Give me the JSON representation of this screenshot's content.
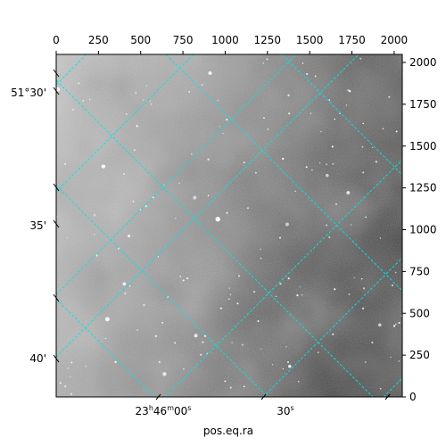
{
  "chart_data": {
    "type": "heatmap",
    "colormap": "gray",
    "image_description": "astronomical sky image with mottled nebulosity and scattered point-like stars; brighter on the left, darker toward the right",
    "xlabel": "pos.eq.ra",
    "ylabel": "",
    "pixel_axes": {
      "xlim": [
        0,
        2048
      ],
      "ylim": [
        0,
        2048
      ],
      "top_ticks": [
        0,
        250,
        500,
        750,
        1000,
        1250,
        1500,
        1750,
        2000
      ],
      "right_ticks": [
        0,
        250,
        500,
        750,
        1000,
        1250,
        1500,
        1750,
        2000
      ]
    },
    "world_ticks": {
      "ra": [
        {
          "h": "23",
          "m": "46",
          "s": "00",
          "label": "23h46m00s"
        },
        {
          "s": "30",
          "label": "30s"
        }
      ],
      "dec": [
        {
          "label": "51°30'"
        },
        {
          "label": "35'"
        },
        {
          "label": "40'"
        }
      ]
    },
    "grid": true,
    "grid_color": "#00e5e5",
    "grid_style": "dashed"
  },
  "colors": {
    "background": "#ffffff",
    "axis": "#000000",
    "grid": "#00e5e5",
    "star": "#ffffff"
  }
}
